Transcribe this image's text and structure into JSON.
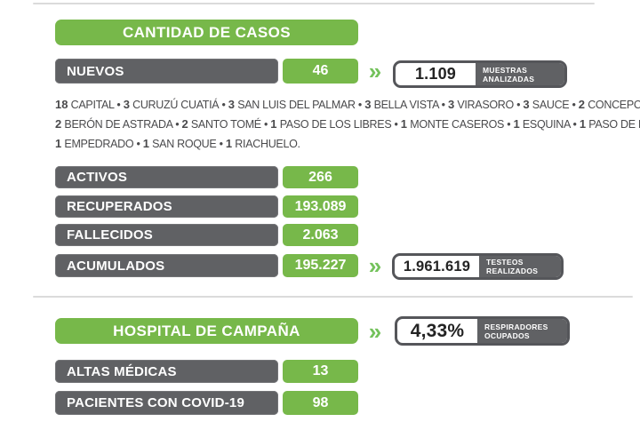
{
  "colors": {
    "accent_green": "#77b84a",
    "chevron_green": "#74c25c",
    "dark_gray": "#606164",
    "divider_gray": "#dbdbdb",
    "body_text": "#4a4a4c"
  },
  "chevron_glyph": "»",
  "cases_section": {
    "title": "CANTIDAD DE CASOS",
    "new_row": {
      "label": "NUEVOS",
      "value": "46"
    },
    "new_callout": {
      "value": "1.109",
      "tag_line1": "MUESTRAS",
      "tag_line2": "ANALIZADAS"
    },
    "breakdown": {
      "separator": "•",
      "lines": [
        {
          "items": [
            [
              "18",
              "CAPITAL"
            ],
            [
              "3",
              "CURUZÚ CUATIÁ"
            ],
            [
              "3",
              "SAN LUIS DEL PALMAR"
            ],
            [
              "3",
              "BELLA VISTA"
            ],
            [
              "3",
              "VIRASORO"
            ],
            [
              "3",
              "SAUCE"
            ],
            [
              "2",
              "CONCEPCIÓN"
            ]
          ],
          "suffix": " •"
        },
        {
          "items": [
            [
              "2",
              "BERÓN DE ASTRADA"
            ],
            [
              "2",
              "SANTO TOMÉ"
            ],
            [
              "1",
              "PASO DE LOS LIBRES"
            ],
            [
              "1",
              "MONTE CASEROS"
            ],
            [
              "1",
              "ESQUINA"
            ],
            [
              "1",
              "PASO DE LA PATRIA"
            ]
          ],
          "suffix": " •"
        },
        {
          "items": [
            [
              "1",
              "EMPEDRADO"
            ],
            [
              "1",
              "SAN ROQUE"
            ],
            [
              "1",
              "RIACHUELO"
            ]
          ],
          "suffix": "."
        }
      ]
    },
    "stat_rows": [
      {
        "label": "ACTIVOS",
        "value": "266"
      },
      {
        "label": "RECUPERADOS",
        "value": "193.089"
      },
      {
        "label": "FALLECIDOS",
        "value": "2.063"
      },
      {
        "label": "ACUMULADOS",
        "value": "195.227"
      }
    ],
    "accumulated_callout": {
      "value": "1.961.619",
      "tag_line1": "TESTEOS",
      "tag_line2": "REALIZADOS"
    }
  },
  "hospital_section": {
    "title": "HOSPITAL DE CAMPAÑA",
    "callout": {
      "value": "4,33%",
      "tag_line1": "RESPIRADORES",
      "tag_line2": "OCUPADOS"
    },
    "stat_rows": [
      {
        "label": "ALTAS MÉDICAS",
        "value": "13"
      },
      {
        "label": "PACIENTES CON COVID-19",
        "value": "98"
      }
    ]
  },
  "chart_data": {
    "type": "table",
    "title": "CANTIDAD DE CASOS",
    "metrics": [
      {
        "label": "NUEVOS",
        "value": 46
      },
      {
        "label": "MUESTRAS ANALIZADAS",
        "value": 1109
      },
      {
        "label": "ACTIVOS",
        "value": 266
      },
      {
        "label": "RECUPERADOS",
        "value": 193089
      },
      {
        "label": "FALLECIDOS",
        "value": 2063
      },
      {
        "label": "ACUMULADOS",
        "value": 195227
      },
      {
        "label": "TESTEOS REALIZADOS",
        "value": 1961619
      },
      {
        "label": "RESPIRADORES OCUPADOS (HOSPITAL DE CAMPAÑA, %)",
        "value": 4.33
      },
      {
        "label": "ALTAS MÉDICAS (HOSPITAL DE CAMPAÑA)",
        "value": 13
      },
      {
        "label": "PACIENTES CON COVID-19 (HOSPITAL DE CAMPAÑA)",
        "value": 98
      }
    ],
    "new_cases_by_location": {
      "CAPITAL": 18,
      "CURUZÚ CUATIÁ": 3,
      "SAN LUIS DEL PALMAR": 3,
      "BELLA VISTA": 3,
      "VIRASORO": 3,
      "SAUCE": 3,
      "CONCEPCIÓN": 2,
      "BERÓN DE ASTRADA": 2,
      "SANTO TOMÉ": 2,
      "PASO DE LOS LIBRES": 1,
      "MONTE CASEROS": 1,
      "ESQUINA": 1,
      "PASO DE LA PATRIA": 1,
      "EMPEDRADO": 1,
      "SAN ROQUE": 1,
      "RIACHUELO": 1
    }
  }
}
